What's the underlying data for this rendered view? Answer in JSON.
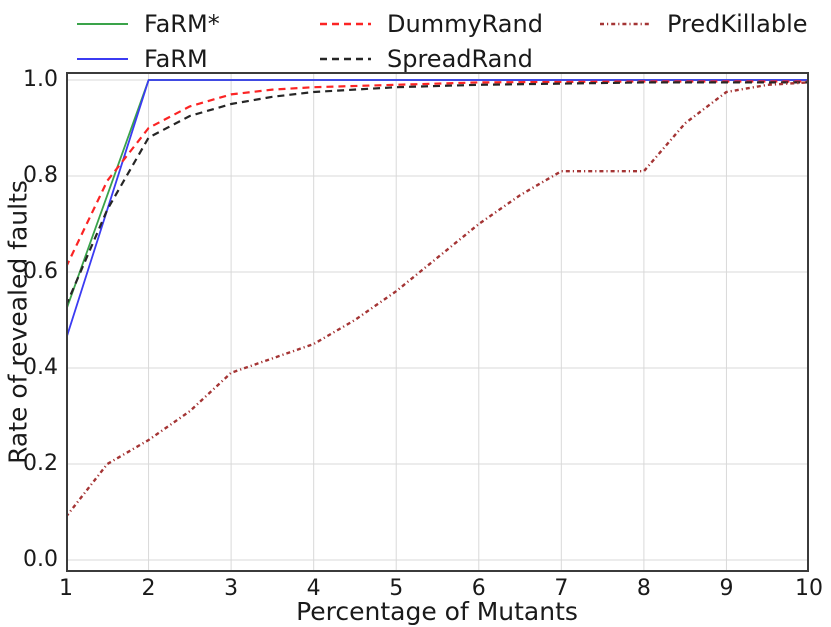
{
  "chart_data": {
    "type": "line",
    "title": "",
    "xlabel": "Percentage of Mutants",
    "ylabel": "Rate of revealed faults",
    "xlim": [
      1,
      10
    ],
    "ylim": [
      0,
      1.0
    ],
    "x_ticks": [
      "1",
      "2",
      "3",
      "4",
      "5",
      "6",
      "7",
      "8",
      "9",
      "10"
    ],
    "y_ticks": [
      "0.0",
      "0.2",
      "0.4",
      "0.6",
      "0.8",
      "1.0"
    ],
    "grid": true,
    "legend_position": "top",
    "grid_color": "#d9d9d9",
    "spine_color": "#3b3b3b",
    "series": [
      {
        "name": "FaRM*",
        "color": "#3aa34a",
        "style": "solid",
        "points": [
          [
            1,
            0.52
          ],
          [
            2,
            1.0
          ],
          [
            10,
            1.0
          ]
        ]
      },
      {
        "name": "FaRM",
        "color": "#3b3bf2",
        "style": "solid",
        "points": [
          [
            1,
            0.46
          ],
          [
            2,
            1.0
          ],
          [
            10,
            1.0
          ]
        ]
      },
      {
        "name": "DummyRand",
        "color": "#fb2424",
        "style": "dashed",
        "points": [
          [
            1,
            0.61
          ],
          [
            1.5,
            0.79
          ],
          [
            2,
            0.9
          ],
          [
            2.5,
            0.945
          ],
          [
            3,
            0.97
          ],
          [
            3.5,
            0.98
          ],
          [
            4,
            0.985
          ],
          [
            5,
            0.99
          ],
          [
            6,
            0.995
          ],
          [
            8,
            0.997
          ],
          [
            10,
            0.997
          ]
        ]
      },
      {
        "name": "SpreadRand",
        "color": "#262626",
        "style": "dashed",
        "points": [
          [
            1,
            0.53
          ],
          [
            1.5,
            0.73
          ],
          [
            2,
            0.88
          ],
          [
            2.5,
            0.925
          ],
          [
            3,
            0.95
          ],
          [
            3.5,
            0.965
          ],
          [
            4,
            0.975
          ],
          [
            5,
            0.985
          ],
          [
            6,
            0.99
          ],
          [
            8,
            0.995
          ],
          [
            10,
            0.995
          ]
        ]
      },
      {
        "name": "PredKillable",
        "color": "#a43434",
        "style": "dashdot",
        "points": [
          [
            1,
            0.09
          ],
          [
            1.5,
            0.2
          ],
          [
            2,
            0.25
          ],
          [
            2.5,
            0.31
          ],
          [
            3,
            0.39
          ],
          [
            3.5,
            0.42
          ],
          [
            4,
            0.45
          ],
          [
            4.5,
            0.5
          ],
          [
            5,
            0.56
          ],
          [
            5.5,
            0.63
          ],
          [
            6,
            0.7
          ],
          [
            6.5,
            0.76
          ],
          [
            7,
            0.81
          ],
          [
            8,
            0.81
          ],
          [
            8.5,
            0.91
          ],
          [
            9,
            0.975
          ],
          [
            9.5,
            0.99
          ],
          [
            10,
            0.995
          ]
        ]
      }
    ]
  }
}
